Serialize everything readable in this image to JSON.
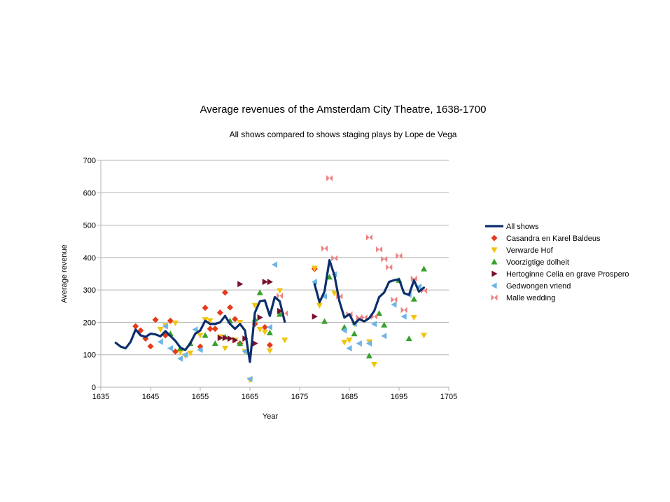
{
  "chart_data": {
    "type": "scatter",
    "title": "Average revenues of the Amsterdam City Theatre, 1638-1700",
    "subtitle": "All shows compared to shows staging plays by Lope de Vega",
    "xlabel": "Year",
    "ylabel": "Average revenue",
    "xlim": [
      1635,
      1705
    ],
    "ylim": [
      0,
      700
    ],
    "x_ticks": [
      1635,
      1645,
      1655,
      1665,
      1675,
      1685,
      1695,
      1705
    ],
    "y_ticks": [
      0,
      100,
      200,
      300,
      400,
      500,
      600,
      700
    ],
    "grid": "horizontal",
    "legend_position": "right",
    "series": [
      {
        "name": "All shows",
        "kind": "line",
        "color": "#0c2f6b",
        "segments": [
          {
            "x": [
              1638,
              1639,
              1640,
              1641,
              1642,
              1643,
              1644,
              1645,
              1646,
              1647,
              1648,
              1649,
              1650,
              1651,
              1652,
              1653,
              1654,
              1655,
              1656,
              1657,
              1658,
              1659,
              1660,
              1661,
              1662,
              1663,
              1664,
              1665,
              1666,
              1667,
              1668,
              1669,
              1670,
              1671,
              1672
            ],
            "y": [
              137,
              125,
              120,
              140,
              178,
              160,
              155,
              165,
              163,
              157,
              173,
              158,
              143,
              122,
              115,
              135,
              165,
              175,
              205,
              195,
              195,
              200,
              220,
              195,
              180,
              195,
              175,
              78,
              230,
              265,
              268,
              220,
              278,
              265,
              202
            ]
          },
          {
            "x": [
              1678,
              1679,
              1680,
              1681,
              1682,
              1683,
              1684,
              1685,
              1686,
              1687,
              1688,
              1689,
              1690,
              1691,
              1692,
              1693,
              1694,
              1695,
              1696,
              1697,
              1698,
              1699,
              1700
            ],
            "y": [
              318,
              262,
              295,
              392,
              345,
              265,
              215,
              225,
              195,
              210,
              203,
              213,
              235,
              278,
              292,
              325,
              330,
              333,
              290,
              285,
              330,
              295,
              307
            ]
          }
        ]
      },
      {
        "name": "Casandra en Karel Baldeus",
        "kind": "markers",
        "marker": "diamond",
        "color": "#e53a1c",
        "points": [
          [
            1642,
            188
          ],
          [
            1643,
            175
          ],
          [
            1644,
            150
          ],
          [
            1645,
            126
          ],
          [
            1646,
            208
          ],
          [
            1648,
            160
          ],
          [
            1649,
            205
          ],
          [
            1650,
            110
          ],
          [
            1655,
            125
          ],
          [
            1656,
            245
          ],
          [
            1657,
            180
          ],
          [
            1658,
            180
          ],
          [
            1659,
            230
          ],
          [
            1660,
            292
          ],
          [
            1661,
            246
          ],
          [
            1662,
            210
          ],
          [
            1663,
            135
          ],
          [
            1666,
            195
          ],
          [
            1668,
            185
          ],
          [
            1669,
            130
          ],
          [
            1678,
            365
          ]
        ]
      },
      {
        "name": "Verwarde Hof",
        "kind": "markers",
        "marker": "triangle-down",
        "color": "#f1c40f",
        "points": [
          [
            1647,
            178
          ],
          [
            1648,
            190
          ],
          [
            1650,
            198
          ],
          [
            1651,
            108
          ],
          [
            1652,
            97
          ],
          [
            1653,
            105
          ],
          [
            1655,
            160
          ],
          [
            1656,
            208
          ],
          [
            1657,
            205
          ],
          [
            1659,
            155
          ],
          [
            1660,
            120
          ],
          [
            1662,
            145
          ],
          [
            1663,
            200
          ],
          [
            1664,
            110
          ],
          [
            1665,
            22
          ],
          [
            1666,
            252
          ],
          [
            1667,
            178
          ],
          [
            1668,
            170
          ],
          [
            1669,
            112
          ],
          [
            1671,
            298
          ],
          [
            1672,
            145
          ],
          [
            1678,
            367
          ],
          [
            1679,
            252
          ],
          [
            1682,
            290
          ],
          [
            1684,
            138
          ],
          [
            1685,
            145
          ],
          [
            1686,
            195
          ],
          [
            1689,
            140
          ],
          [
            1690,
            70
          ],
          [
            1698,
            215
          ],
          [
            1700,
            160
          ]
        ]
      },
      {
        "name": "Voorzigtige dolheit",
        "kind": "markers",
        "marker": "triangle-up",
        "color": "#37a12b",
        "points": [
          [
            1649,
            165
          ],
          [
            1651,
            120
          ],
          [
            1653,
            135
          ],
          [
            1656,
            160
          ],
          [
            1658,
            135
          ],
          [
            1660,
            155
          ],
          [
            1661,
            205
          ],
          [
            1663,
            135
          ],
          [
            1666,
            210
          ],
          [
            1667,
            292
          ],
          [
            1669,
            168
          ],
          [
            1671,
            225
          ],
          [
            1680,
            203
          ],
          [
            1681,
            340
          ],
          [
            1684,
            185
          ],
          [
            1686,
            165
          ],
          [
            1689,
            97
          ],
          [
            1691,
            228
          ],
          [
            1692,
            192
          ],
          [
            1695,
            330
          ],
          [
            1697,
            150
          ],
          [
            1698,
            272
          ],
          [
            1700,
            365
          ]
        ]
      },
      {
        "name": "Hertoginne Celia en grave Prospero",
        "kind": "markers",
        "marker": "triangle-right",
        "color": "#7b0f2a",
        "points": [
          [
            1659,
            152
          ],
          [
            1660,
            152
          ],
          [
            1661,
            150
          ],
          [
            1662,
            145
          ],
          [
            1663,
            318
          ],
          [
            1664,
            150
          ],
          [
            1666,
            135
          ],
          [
            1667,
            215
          ],
          [
            1668,
            325
          ],
          [
            1669,
            325
          ],
          [
            1671,
            235
          ],
          [
            1678,
            218
          ]
        ]
      },
      {
        "name": "Gedwongen vriend",
        "kind": "markers",
        "marker": "triangle-left",
        "color": "#6cb4e8",
        "points": [
          [
            1647,
            140
          ],
          [
            1648,
            188
          ],
          [
            1649,
            120
          ],
          [
            1651,
            88
          ],
          [
            1652,
            100
          ],
          [
            1654,
            178
          ],
          [
            1655,
            115
          ],
          [
            1664,
            110
          ],
          [
            1665,
            25
          ],
          [
            1669,
            185
          ],
          [
            1670,
            378
          ],
          [
            1678,
            325
          ],
          [
            1680,
            280
          ],
          [
            1682,
            348
          ],
          [
            1684,
            175
          ],
          [
            1685,
            120
          ],
          [
            1686,
            195
          ],
          [
            1687,
            135
          ],
          [
            1689,
            135
          ],
          [
            1690,
            195
          ],
          [
            1692,
            158
          ],
          [
            1694,
            255
          ],
          [
            1696,
            218
          ],
          [
            1697,
            285
          ],
          [
            1699,
            310
          ]
        ]
      },
      {
        "name": "Malle wedding",
        "kind": "markers",
        "marker": "bowtie",
        "color": "#f08080",
        "points": [
          [
            1671,
            282
          ],
          [
            1672,
            228
          ],
          [
            1680,
            428
          ],
          [
            1681,
            645
          ],
          [
            1682,
            398
          ],
          [
            1683,
            280
          ],
          [
            1685,
            225
          ],
          [
            1687,
            215
          ],
          [
            1688,
            215
          ],
          [
            1689,
            462
          ],
          [
            1690,
            218
          ],
          [
            1691,
            425
          ],
          [
            1692,
            395
          ],
          [
            1693,
            370
          ],
          [
            1694,
            270
          ],
          [
            1695,
            405
          ],
          [
            1696,
            238
          ],
          [
            1698,
            335
          ],
          [
            1700,
            298
          ]
        ]
      }
    ]
  }
}
